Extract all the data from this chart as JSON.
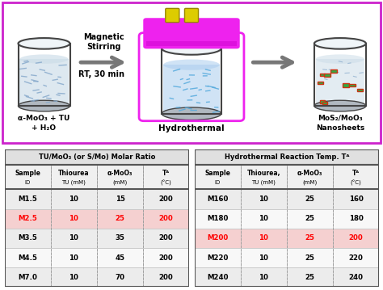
{
  "bg_color": "#ffffff",
  "schematic_border_color": "#cc44cc",
  "label_left": "α-MoO₃ + TU\n+ H₂O",
  "label_middle": "Hydrothermal",
  "label_right": "MoS₂/MoO₃\nNanosheets",
  "arrow_text1": "Magnetic\nStirring",
  "arrow_text2": "RT, 30 min",
  "table1_title": "TU/MoO₃ (or S/Mo) Molar Ratio",
  "table2_title": "Hydrothermal Reaction Temp. Tᴬ",
  "table1_headers_line1": [
    "Sample",
    "Thiourea",
    "α-MoO₃",
    "Tᴬ"
  ],
  "table1_headers_line2": [
    "ID",
    "TU (mM)",
    "(mM)",
    "(°C)"
  ],
  "table1_rows": [
    [
      "M1.5",
      "10",
      "15",
      "200"
    ],
    [
      "M2.5",
      "10",
      "25",
      "200"
    ],
    [
      "M3.5",
      "10",
      "35",
      "200"
    ],
    [
      "M4.5",
      "10",
      "45",
      "200"
    ],
    [
      "M7.0",
      "10",
      "70",
      "200"
    ]
  ],
  "table1_highlight_row": 1,
  "table2_headers_line1": [
    "Sample",
    "Thiourea,",
    "α-MoO₃",
    "Tᴬ"
  ],
  "table2_headers_line2": [
    "ID",
    "TU (mM)",
    "(mM)",
    "(°C)"
  ],
  "table2_rows": [
    [
      "M160",
      "10",
      "25",
      "160"
    ],
    [
      "M180",
      "10",
      "25",
      "180"
    ],
    [
      "M200",
      "10",
      "25",
      "200"
    ],
    [
      "M220",
      "10",
      "25",
      "220"
    ],
    [
      "M240",
      "10",
      "25",
      "240"
    ]
  ],
  "table2_highlight_row": 2,
  "highlight_color": "#ff0000",
  "highlight_row_bg": "#f5d0d0",
  "normal_row_bg_even": "#ececec",
  "normal_row_bg_odd": "#f8f8f8",
  "table_border_color": "#555555",
  "table_header_bg": "#f0f0f0",
  "table_title_bg": "#e0e0e0"
}
